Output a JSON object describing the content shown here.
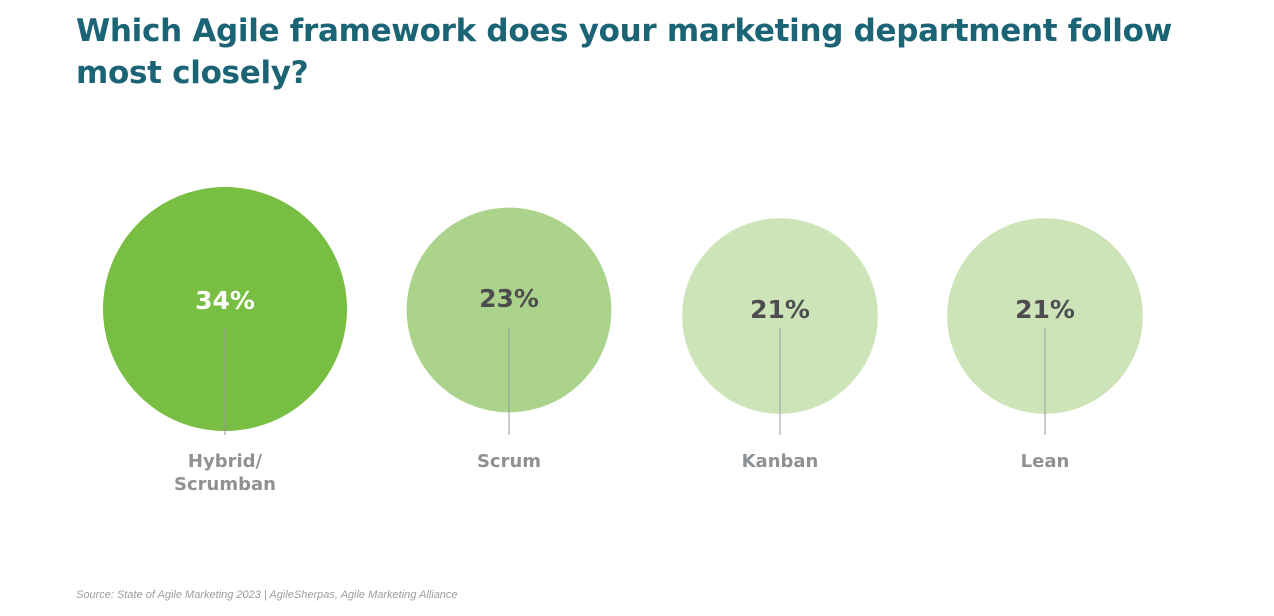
{
  "chart_data": {
    "type": "bubble",
    "title": "Which Agile framework does your marketing department follow most closely?",
    "categories": [
      "Hybrid/\nScrumban",
      "Scrum",
      "Kanban",
      "Lean"
    ],
    "values": [
      34,
      23,
      21,
      21
    ],
    "labels": [
      "34%",
      "23%",
      "21%",
      "21%"
    ],
    "colors": [
      "#78be43",
      "#acd38b",
      "#cde4b9",
      "#cde4b9"
    ],
    "label_colors": [
      "#ffffff",
      "#4d4d4f",
      "#4d4d4f",
      "#4d4d4f"
    ],
    "source": "Source: State of Agile Marketing 2023 | AgileSherpas, Agile Marketing Alliance"
  }
}
